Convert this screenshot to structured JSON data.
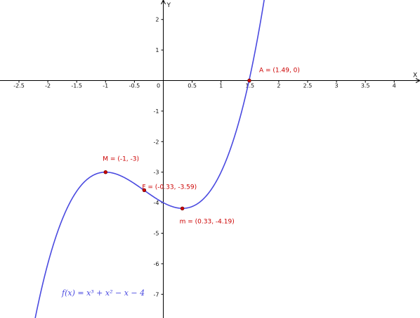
{
  "chart_data": {
    "type": "line",
    "title": "",
    "xlabel": "X",
    "ylabel": "Y",
    "xlim": [
      -2.8,
      4.4
    ],
    "ylim": [
      -7.6,
      2.4
    ],
    "grid": false,
    "x_ticks": [
      {
        "value": -2.5,
        "label": "-2.5"
      },
      {
        "value": -2,
        "label": "-2"
      },
      {
        "value": -1.5,
        "label": "-1.5"
      },
      {
        "value": -1,
        "label": "-1"
      },
      {
        "value": -0.5,
        "label": "-0.5"
      },
      {
        "value": 0.5,
        "label": "0.5"
      },
      {
        "value": 1,
        "label": "1"
      },
      {
        "value": 1.5,
        "label": "1.5"
      },
      {
        "value": 2,
        "label": "2"
      },
      {
        "value": 2.5,
        "label": "2.5"
      },
      {
        "value": 3,
        "label": "3"
      },
      {
        "value": 3.5,
        "label": "3.5"
      },
      {
        "value": 4,
        "label": "4"
      }
    ],
    "y_ticks": [
      {
        "value": 2,
        "label": "2"
      },
      {
        "value": 1,
        "label": "1"
      },
      {
        "value": -1,
        "label": "-1"
      },
      {
        "value": -2,
        "label": "-2"
      },
      {
        "value": -3,
        "label": "-3"
      },
      {
        "value": -4,
        "label": "-4"
      },
      {
        "value": -5,
        "label": "-5"
      },
      {
        "value": -6,
        "label": "-6"
      },
      {
        "value": -7,
        "label": "-7"
      }
    ],
    "origin_label": "0",
    "function": {
      "label": "f(x)  =  x³ + x² − x − 4",
      "coefficients": [
        1,
        1,
        -1,
        -4
      ],
      "domain": [
        -2.8,
        4.4
      ],
      "color": "#4a4ae0"
    },
    "points": [
      {
        "name": "A",
        "label": "A = (1.49, 0)",
        "x": 1.49,
        "y": 0
      },
      {
        "name": "M",
        "label": "M = (-1, -3)",
        "x": -1,
        "y": -3
      },
      {
        "name": "F",
        "label": "F = (-0.33, -3.59)",
        "x": -0.33,
        "y": -3.59
      },
      {
        "name": "m",
        "label": "m = (0.33, -4.19)",
        "x": 0.33,
        "y": -4.19
      }
    ],
    "point_color": "#cc0000",
    "label_color": "#cc0000"
  }
}
